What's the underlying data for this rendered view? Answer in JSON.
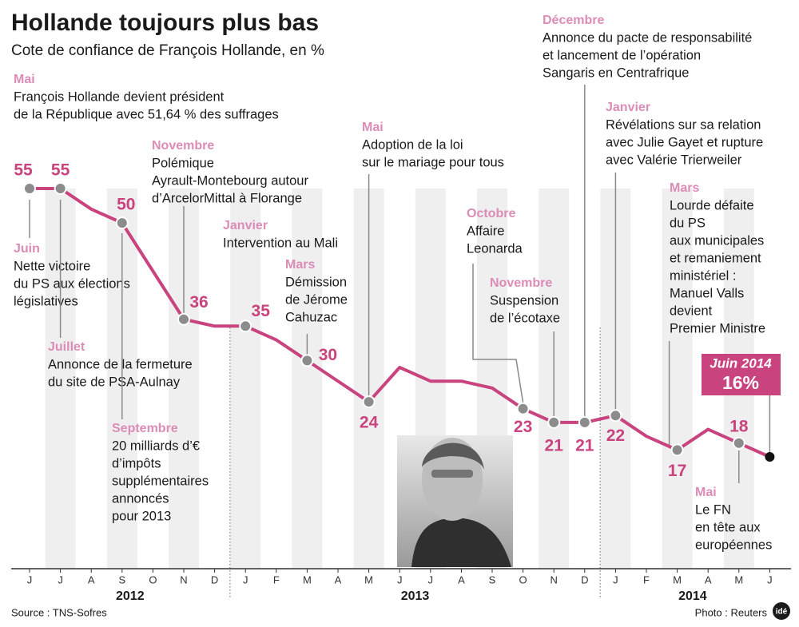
{
  "chart_data": {
    "type": "line",
    "title": "Hollande toujours plus bas",
    "subtitle": "Cote de confiance de François Hollande, en %",
    "categories": [
      "J",
      "J",
      "A",
      "S",
      "O",
      "N",
      "D",
      "J",
      "F",
      "M",
      "A",
      "M",
      "J",
      "J",
      "A",
      "S",
      "O",
      "N",
      "D",
      "J",
      "F",
      "M",
      "A",
      "M",
      "J"
    ],
    "years": [
      "2012",
      "2013",
      "2014"
    ],
    "values": [
      55,
      55,
      52,
      50,
      43,
      36,
      35,
      35,
      33,
      30,
      27,
      24,
      29,
      27,
      27,
      26,
      23,
      21,
      21,
      22,
      19,
      17,
      20,
      18,
      16
    ],
    "value_labels": [
      "55",
      "55",
      null,
      "50",
      null,
      "36",
      null,
      "35",
      null,
      "30",
      null,
      "24",
      null,
      null,
      null,
      null,
      "23",
      "21",
      "21",
      "22",
      null,
      "17",
      null,
      "18",
      "16%"
    ],
    "color": "#c9437f",
    "highlight_title": "Juin 2014",
    "annotations": [
      {
        "title": "Mai",
        "lines": [
          "François Hollande devient président",
          "de la République avec 51,64 % des suffrages"
        ]
      },
      {
        "title": "Juin",
        "lines": [
          "Nette victoire",
          "du PS aux élections",
          "législatives"
        ]
      },
      {
        "title": "Juillet",
        "lines": [
          "Annonce de la fermeture",
          "du site de PSA-Aulnay"
        ]
      },
      {
        "title": "Septembre",
        "lines": [
          "20 milliards d’€",
          "d’impôts",
          "supplémentaires",
          "annoncés",
          "pour 2013"
        ]
      },
      {
        "title": "Novembre",
        "lines": [
          "Polémique",
          "Ayrault-Montebourg autour",
          "d’ArcelorMittal à Florange"
        ]
      },
      {
        "title": "Janvier",
        "lines": [
          "Intervention au Mali"
        ]
      },
      {
        "title": "Mars",
        "lines": [
          "Démission",
          "de Jérome",
          "Cahuzac"
        ]
      },
      {
        "title": "Mai",
        "lines": [
          "Adoption de la loi",
          "sur le mariage pour tous"
        ]
      },
      {
        "title": "Octobre",
        "lines": [
          "Affaire",
          "Leonarda"
        ]
      },
      {
        "title": "Novembre",
        "lines": [
          "Suspension",
          "de l’écotaxe"
        ]
      },
      {
        "title": "Décembre",
        "lines": [
          "Annonce du pacte de responsabilité",
          "et lancement de l’opération",
          "Sangaris en Centrafrique"
        ]
      },
      {
        "title": "Janvier",
        "lines": [
          "Révélations sur sa relation",
          "avec Julie Gayet et rupture",
          "avec Valérie Trierweiler"
        ]
      },
      {
        "title": "Mars",
        "lines": [
          "Lourde défaite",
          "du PS",
          "aux municipales",
          "et remaniement",
          "ministériel :",
          "Manuel Valls",
          "devient",
          "Premier Ministre"
        ]
      },
      {
        "title": "Mai",
        "lines": [
          "Le FN",
          "en tête aux",
          "européennes"
        ]
      }
    ],
    "source": "Source : TNS-Sofres",
    "photo_credit": "Photo : Reuters",
    "logo": "idé"
  }
}
